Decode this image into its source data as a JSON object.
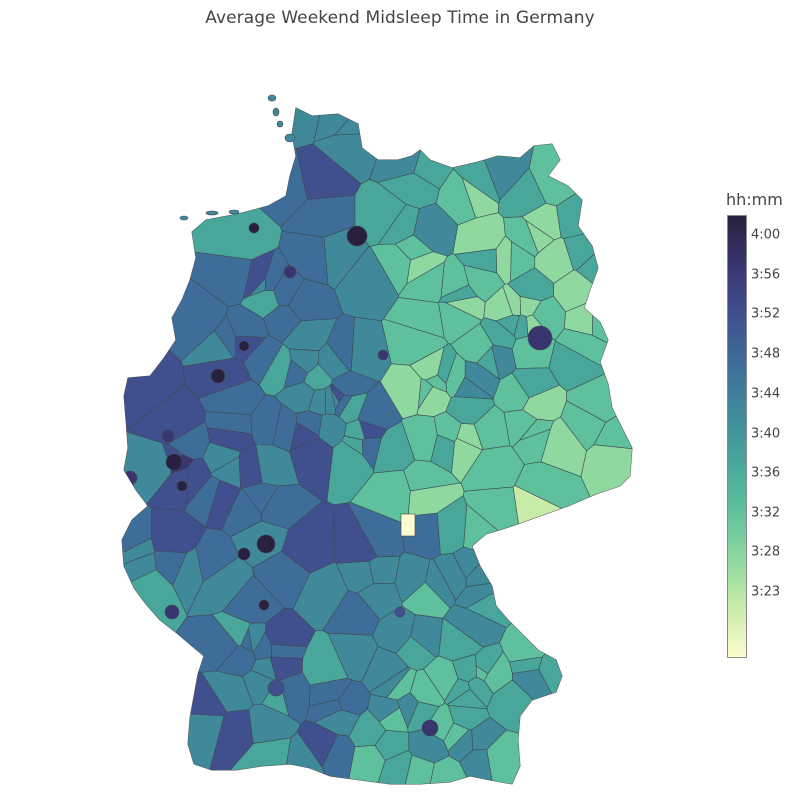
{
  "title": "Average Weekend Midsleep Time in Germany",
  "colorbar": {
    "title": "hh:mm",
    "ticks": [
      "4:00",
      "3:56",
      "3:52",
      "3:48",
      "3:44",
      "3:40",
      "3:36",
      "3:32",
      "3:28",
      "3:23"
    ],
    "colorscale": [
      "#fdfcce",
      "#c9ebaa",
      "#8fd8a0",
      "#5ec09c",
      "#48a69b",
      "#40899b",
      "#3e6d99",
      "#404f8e",
      "#393570",
      "#28203e"
    ]
  },
  "map": {
    "region": "Germany",
    "land_color": "#40899b",
    "border_color": "#3a3a3a"
  }
}
